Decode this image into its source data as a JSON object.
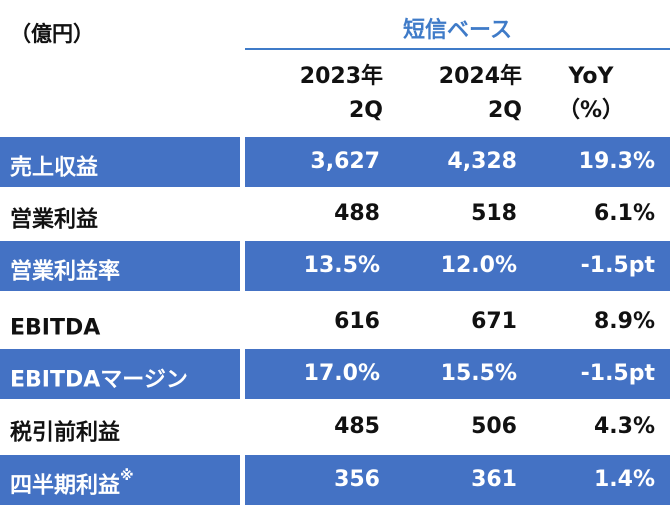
{
  "unit_label": "（億円）",
  "basis_label": "短信ベース",
  "columns": {
    "y2023": [
      "2023年",
      "2Q"
    ],
    "y2024": [
      "2024年",
      "2Q"
    ],
    "yoy": [
      "YoY",
      "（%）"
    ]
  },
  "rows": [
    {
      "label": "売上収益",
      "note": "",
      "v2023": "3,627",
      "v2024": "4,328",
      "yoy": "19.3%",
      "highlight": true
    },
    {
      "label": "営業利益",
      "note": "",
      "v2023": "488",
      "v2024": "518",
      "yoy": "6.1%",
      "highlight": false
    },
    {
      "label": "営業利益率",
      "note": "",
      "v2023": "13.5%",
      "v2024": "12.0%",
      "yoy": "-1.5pt",
      "highlight": true
    },
    {
      "label": "EBITDA",
      "note": "",
      "v2023": "616",
      "v2024": "671",
      "yoy": "8.9%",
      "highlight": false
    },
    {
      "label": "EBITDAマージン",
      "note": "",
      "v2023": "17.0%",
      "v2024": "15.5%",
      "yoy": "-1.5pt",
      "highlight": true
    },
    {
      "label": "税引前利益",
      "note": "",
      "v2023": "485",
      "v2024": "506",
      "yoy": "4.3%",
      "highlight": false
    },
    {
      "label": "四半期利益",
      "note": "※",
      "v2023": "356",
      "v2024": "361",
      "yoy": "1.4%",
      "highlight": true
    }
  ],
  "colors": {
    "accent": "#4472c4",
    "basis_text": "#3f7bc8"
  }
}
